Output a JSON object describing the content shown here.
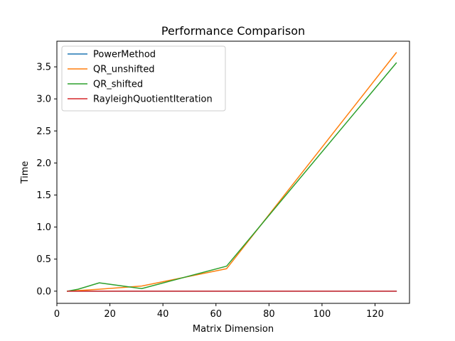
{
  "chart_data": {
    "type": "line",
    "title": "Performance Comparison",
    "xlabel": "Matrix Dimension",
    "ylabel": "Time",
    "xlim": [
      0,
      133
    ],
    "ylim": [
      -0.19,
      3.9
    ],
    "xticks": [
      0,
      20,
      40,
      60,
      80,
      100,
      120
    ],
    "yticks": [
      0.0,
      0.5,
      1.0,
      1.5,
      2.0,
      2.5,
      3.0,
      3.5
    ],
    "ytick_labels": [
      "0.0",
      "0.5",
      "1.0",
      "1.5",
      "2.0",
      "2.5",
      "3.0",
      "3.5"
    ],
    "grid": false,
    "legend_position": "top-left",
    "x": [
      4,
      8,
      16,
      32,
      64,
      128
    ],
    "series": [
      {
        "name": "PowerMethod",
        "color": "#1f77b4",
        "values": [
          0.0,
          0.0,
          0.0,
          0.0,
          0.0,
          0.0
        ]
      },
      {
        "name": "QR_unshifted",
        "color": "#ff7f0e",
        "values": [
          0.0,
          0.01,
          0.03,
          0.08,
          0.35,
          3.72
        ]
      },
      {
        "name": "QR_shifted",
        "color": "#2ca02c",
        "values": [
          0.0,
          0.03,
          0.13,
          0.04,
          0.39,
          3.56
        ]
      },
      {
        "name": "RayleighQuotientIteration",
        "color": "#d62728",
        "values": [
          0.0,
          0.0,
          0.0,
          0.0,
          0.0,
          0.0
        ]
      }
    ]
  }
}
